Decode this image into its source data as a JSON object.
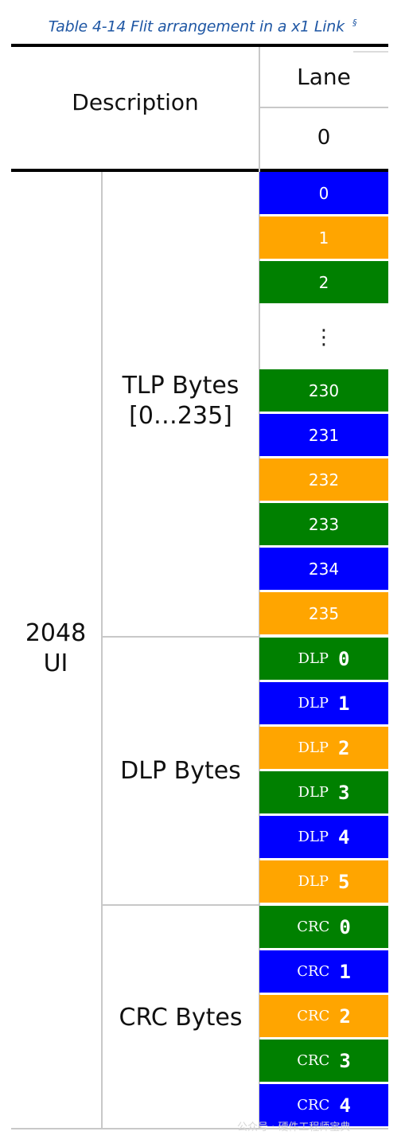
{
  "caption": {
    "title": "Table 4-14 Flit arrangement in a x1 Link",
    "section_mark": "§"
  },
  "header": {
    "description": "Description",
    "lane": "Lane",
    "lane_number": "0"
  },
  "rows": {
    "ui_label_line1": "2048",
    "ui_label_line2": "UI",
    "tlp_label_line1": "TLP Bytes",
    "tlp_label_line2": "[0…235]",
    "dlp_label": "DLP Bytes",
    "crc_label": "CRC Bytes"
  },
  "colors": {
    "blue": "#0000ff",
    "orange": "#ffa500",
    "green": "#008000"
  },
  "bytes_top": [
    {
      "label": "0",
      "color": "#0000ff"
    },
    {
      "label": "1",
      "color": "#ffa500"
    },
    {
      "label": "2",
      "color": "#008000"
    }
  ],
  "ellipsis": "⋮",
  "bytes_tlp_tail": [
    {
      "label": "230",
      "color": "#008000"
    },
    {
      "label": "231",
      "color": "#0000ff"
    },
    {
      "label": "232",
      "color": "#ffa500"
    },
    {
      "label": "233",
      "color": "#008000"
    },
    {
      "label": "234",
      "color": "#0000ff"
    },
    {
      "label": "235",
      "color": "#ffa500"
    }
  ],
  "bytes_dlp": [
    {
      "tag": "DLP",
      "num": "0",
      "color": "#008000"
    },
    {
      "tag": "DLP",
      "num": "1",
      "color": "#0000ff"
    },
    {
      "tag": "DLP",
      "num": "2",
      "color": "#ffa500"
    },
    {
      "tag": "DLP",
      "num": "3",
      "color": "#008000"
    },
    {
      "tag": "DLP",
      "num": "4",
      "color": "#0000ff"
    },
    {
      "tag": "DLP",
      "num": "5",
      "color": "#ffa500"
    }
  ],
  "bytes_crc": [
    {
      "tag": "CRC",
      "num": "0",
      "color": "#008000"
    },
    {
      "tag": "CRC",
      "num": "1",
      "color": "#0000ff"
    },
    {
      "tag": "CRC",
      "num": "2",
      "color": "#ffa500"
    },
    {
      "tag": "CRC",
      "num": "3",
      "color": "#008000"
    },
    {
      "tag": "CRC",
      "num": "4",
      "color": "#0000ff"
    }
  ],
  "watermark": "公众号 · 硬件工程师宝典"
}
